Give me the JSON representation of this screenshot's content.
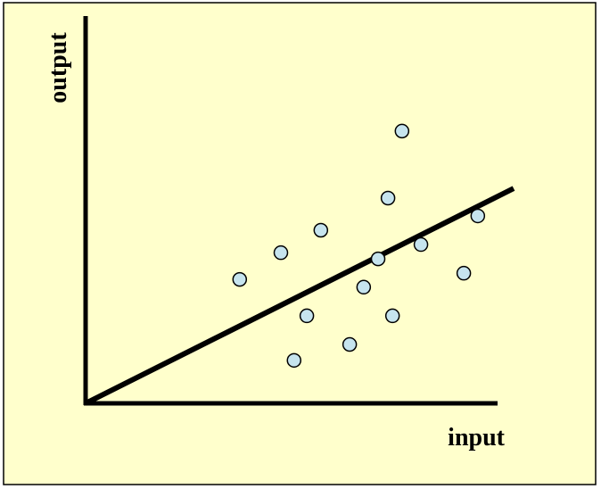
{
  "chart_data": {
    "type": "scatter",
    "x_label": "input",
    "y_label": "output",
    "xlim": [
      0,
      100
    ],
    "ylim": [
      0,
      100
    ],
    "x": [
      37.4,
      47.4,
      57.1,
      53.7,
      50.6,
      64.1,
      67.5,
      71.0,
      73.4,
      76.8,
      74.5,
      81.4,
      91.8,
      95.2
    ],
    "values": [
      32.0,
      38.9,
      44.7,
      22.6,
      11.1,
      15.2,
      30.0,
      37.3,
      53.0,
      70.3,
      22.6,
      41.0,
      33.6,
      48.4
    ],
    "color": "#c6e4ee",
    "fit_line": {
      "x": [
        0,
        103.9
      ],
      "y": [
        0,
        55.5
      ],
      "color": "#000000"
    }
  }
}
